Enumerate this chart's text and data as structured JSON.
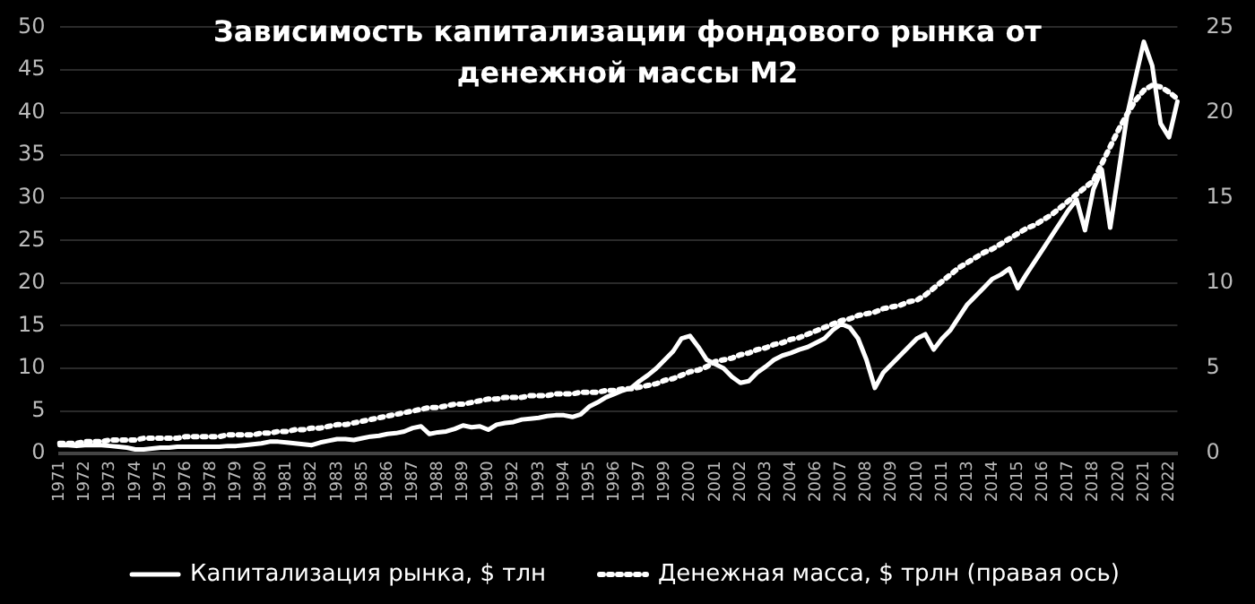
{
  "chart_data": {
    "type": "line",
    "title": "Зависимость капитализации фондового рынка от денежной массы M2",
    "categories": [
      "1971",
      null,
      null,
      "1972",
      null,
      null,
      "1973",
      null,
      null,
      "1974",
      null,
      null,
      "1975",
      null,
      null,
      "1976",
      null,
      null,
      "1978",
      null,
      null,
      "1979",
      null,
      null,
      "1980",
      null,
      null,
      "1981",
      null,
      null,
      "1982",
      null,
      null,
      "1983",
      null,
      null,
      "1985",
      null,
      null,
      "1986",
      null,
      null,
      "1987",
      null,
      null,
      "1988",
      null,
      null,
      "1989",
      null,
      null,
      "1990",
      null,
      null,
      "1992",
      null,
      null,
      "1993",
      null,
      null,
      "1994",
      null,
      null,
      "1995",
      null,
      null,
      "1996",
      null,
      null,
      "1997",
      null,
      null,
      "1999",
      null,
      null,
      "2000",
      null,
      null,
      "2001",
      null,
      null,
      "2002",
      null,
      null,
      "2003",
      null,
      null,
      "2004",
      null,
      null,
      "2006",
      null,
      null,
      "2007",
      null,
      null,
      "2008",
      null,
      null,
      "2009",
      null,
      null,
      "2010",
      null,
      null,
      "2011",
      null,
      null,
      "2013",
      null,
      null,
      "2014",
      null,
      null,
      "2015",
      null,
      null,
      "2016",
      null,
      null,
      "2017",
      null,
      null,
      "2018",
      null,
      null,
      "2020",
      null,
      null,
      "2021",
      null,
      null,
      "2022",
      null
    ],
    "series": [
      {
        "name": "Капитализация рынка, $ тлн",
        "color": "#ffffff",
        "line_style": "solid",
        "values": [
          1.0,
          1.0,
          0.9,
          1.0,
          1.0,
          1.0,
          0.9,
          0.8,
          0.7,
          0.5,
          0.5,
          0.6,
          0.7,
          0.7,
          0.8,
          0.8,
          0.8,
          0.8,
          0.8,
          0.8,
          0.9,
          0.9,
          1.0,
          1.1,
          1.2,
          1.4,
          1.4,
          1.3,
          1.2,
          1.1,
          1.0,
          1.3,
          1.5,
          1.7,
          1.7,
          1.6,
          1.8,
          2.0,
          2.1,
          2.3,
          2.4,
          2.6,
          3.0,
          3.2,
          2.3,
          2.5,
          2.6,
          2.9,
          3.3,
          3.1,
          3.2,
          2.8,
          3.4,
          3.6,
          3.7,
          4.0,
          4.1,
          4.2,
          4.4,
          4.5,
          4.5,
          4.3,
          4.6,
          5.5,
          6.0,
          6.6,
          7.0,
          7.4,
          7.7,
          8.5,
          9.2,
          10.0,
          11.0,
          12.0,
          13.5,
          13.8,
          12.5,
          11.0,
          10.5,
          10.0,
          9.0,
          8.3,
          8.5,
          9.5,
          10.2,
          11.0,
          11.5,
          11.8,
          12.2,
          12.5,
          13.0,
          13.5,
          14.5,
          15.2,
          14.8,
          13.5,
          11.0,
          7.7,
          9.5,
          10.5,
          11.5,
          12.5,
          13.5,
          14.0,
          12.2,
          13.5,
          14.5,
          16.0,
          17.5,
          18.5,
          19.5,
          20.5,
          21.0,
          21.7,
          19.4,
          21.0,
          22.5,
          24.0,
          25.5,
          27.0,
          28.5,
          29.8,
          26.2,
          31.0,
          33.3,
          26.5,
          33.0,
          39.6,
          44.0,
          48.3,
          45.5,
          38.7,
          37.1,
          41.3
        ]
      },
      {
        "name": "Денежная масса, $ трлн (правая ось)",
        "color": "#ffffff",
        "line_style": "dotted",
        "axis": "y2",
        "values": [
          0.6,
          0.6,
          0.6,
          0.7,
          0.7,
          0.7,
          0.8,
          0.8,
          0.8,
          0.8,
          0.9,
          0.9,
          0.9,
          0.9,
          0.9,
          1.0,
          1.0,
          1.0,
          1.0,
          1.0,
          1.1,
          1.1,
          1.1,
          1.1,
          1.2,
          1.2,
          1.3,
          1.3,
          1.4,
          1.4,
          1.5,
          1.5,
          1.6,
          1.7,
          1.7,
          1.8,
          1.9,
          2.0,
          2.1,
          2.2,
          2.3,
          2.4,
          2.5,
          2.6,
          2.7,
          2.7,
          2.8,
          2.9,
          2.9,
          3.0,
          3.1,
          3.2,
          3.2,
          3.3,
          3.3,
          3.3,
          3.4,
          3.4,
          3.4,
          3.5,
          3.5,
          3.5,
          3.6,
          3.6,
          3.6,
          3.7,
          3.7,
          3.8,
          3.8,
          3.9,
          4.0,
          4.1,
          4.3,
          4.4,
          4.6,
          4.8,
          4.9,
          5.1,
          5.4,
          5.5,
          5.6,
          5.8,
          5.9,
          6.1,
          6.2,
          6.4,
          6.5,
          6.7,
          6.8,
          7.0,
          7.2,
          7.4,
          7.6,
          7.8,
          7.9,
          8.1,
          8.2,
          8.3,
          8.5,
          8.6,
          8.7,
          8.9,
          9.0,
          9.3,
          9.7,
          10.1,
          10.5,
          10.9,
          11.2,
          11.5,
          11.8,
          12.0,
          12.3,
          12.6,
          12.9,
          13.2,
          13.4,
          13.7,
          14.0,
          14.4,
          14.8,
          15.2,
          15.6,
          16.0,
          17.0,
          18.0,
          19.0,
          19.9,
          20.7,
          21.3,
          21.6,
          21.5,
          21.2,
          20.8
        ]
      }
    ],
    "ylim": [
      0,
      50
    ],
    "yticks": [
      0,
      5,
      10,
      15,
      20,
      25,
      30,
      35,
      40,
      45,
      50
    ],
    "y2lim": [
      0,
      25
    ],
    "y2ticks": [
      0,
      5,
      10,
      15,
      20,
      25
    ],
    "grid": "y",
    "legend": "bottom",
    "marker": "none"
  }
}
